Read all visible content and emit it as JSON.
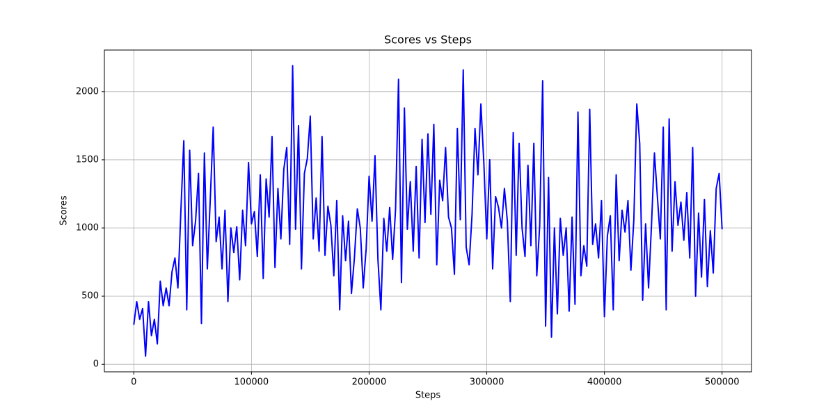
{
  "chart_data": {
    "type": "line",
    "title": "Scores vs Steps",
    "x_label": "Steps",
    "y_label": "Scores",
    "color": "#0000ff",
    "grid": true,
    "xlim": [
      -25000,
      525000
    ],
    "ylim": [
      -55,
      2305
    ],
    "xticks": [
      0,
      100000,
      200000,
      300000,
      400000,
      500000
    ],
    "yticks": [
      0,
      500,
      1000,
      1500,
      2000
    ],
    "x": [
      0,
      2500,
      5000,
      7500,
      10000,
      12500,
      15000,
      17500,
      20000,
      22500,
      25000,
      27500,
      30000,
      32500,
      35000,
      37500,
      40000,
      42500,
      45000,
      47500,
      50000,
      52500,
      55000,
      57500,
      60000,
      62500,
      65000,
      67500,
      70000,
      72500,
      75000,
      77500,
      80000,
      82500,
      85000,
      87500,
      90000,
      92500,
      95000,
      97500,
      100000,
      102500,
      105000,
      107500,
      110000,
      112500,
      115000,
      117500,
      120000,
      122500,
      125000,
      127500,
      130000,
      132500,
      135000,
      137500,
      140000,
      142500,
      145000,
      147500,
      150000,
      152500,
      155000,
      157500,
      160000,
      162500,
      165000,
      167500,
      170000,
      172500,
      175000,
      177500,
      180000,
      182500,
      185000,
      187500,
      190000,
      192500,
      195000,
      197500,
      200000,
      202500,
      205000,
      207500,
      210000,
      212500,
      215000,
      217500,
      220000,
      222500,
      225000,
      227500,
      230000,
      232500,
      235000,
      237500,
      240000,
      242500,
      245000,
      247500,
      250000,
      252500,
      255000,
      257500,
      260000,
      262500,
      265000,
      267500,
      270000,
      272500,
      275000,
      277500,
      280000,
      282500,
      285000,
      287500,
      290000,
      292500,
      295000,
      297500,
      300000,
      302500,
      305000,
      307500,
      310000,
      312500,
      315000,
      317500,
      320000,
      322500,
      325000,
      327500,
      330000,
      332500,
      335000,
      337500,
      340000,
      342500,
      345000,
      347500,
      350000,
      352500,
      355000,
      357500,
      360000,
      362500,
      365000,
      367500,
      370000,
      372500,
      375000,
      377500,
      380000,
      382500,
      385000,
      387500,
      390000,
      392500,
      395000,
      397500,
      400000,
      402500,
      405000,
      407500,
      410000,
      412500,
      415000,
      417500,
      420000,
      422500,
      425000,
      427500,
      430000,
      432500,
      435000,
      437500,
      440000,
      442500,
      445000,
      447500,
      450000,
      452500,
      455000,
      457500,
      460000,
      462500,
      465000,
      467500,
      470000,
      472500,
      475000,
      477500,
      480000,
      482500,
      485000,
      487500,
      490000,
      492500,
      495000,
      497500,
      500000
    ],
    "values": [
      290,
      460,
      330,
      410,
      60,
      460,
      210,
      330,
      150,
      610,
      430,
      560,
      430,
      680,
      780,
      560,
      1120,
      1640,
      400,
      1570,
      870,
      1050,
      1400,
      300,
      1550,
      700,
      1210,
      1740,
      900,
      1080,
      700,
      1130,
      460,
      1000,
      820,
      1010,
      620,
      1130,
      870,
      1480,
      1030,
      1120,
      790,
      1390,
      630,
      1360,
      1080,
      1670,
      710,
      1290,
      920,
      1430,
      1590,
      880,
      2190,
      990,
      1750,
      700,
      1400,
      1510,
      1820,
      920,
      1220,
      830,
      1670,
      800,
      1160,
      1020,
      650,
      1200,
      400,
      1090,
      760,
      1050,
      520,
      780,
      1140,
      1000,
      560,
      850,
      1380,
      1050,
      1530,
      770,
      400,
      1070,
      830,
      1150,
      770,
      1140,
      2090,
      600,
      1880,
      990,
      1340,
      830,
      1450,
      780,
      1650,
      1040,
      1690,
      1100,
      1760,
      730,
      1350,
      1200,
      1590,
      1080,
      1000,
      660,
      1730,
      1060,
      2160,
      860,
      730,
      1100,
      1730,
      1390,
      1910,
      1480,
      920,
      1500,
      700,
      1230,
      1150,
      1000,
      1290,
      1050,
      460,
      1700,
      800,
      1620,
      1000,
      790,
      1460,
      870,
      1620,
      650,
      1020,
      2080,
      280,
      1370,
      200,
      1000,
      370,
      1070,
      800,
      1000,
      390,
      1080,
      440,
      1850,
      650,
      870,
      720,
      1870,
      880,
      1030,
      780,
      1200,
      350,
      940,
      1090,
      400,
      1390,
      760,
      1130,
      970,
      1200,
      690,
      1060,
      1910,
      1620,
      470,
      1030,
      560,
      1020,
      1550,
      1230,
      920,
      1740,
      400,
      1800,
      830,
      1340,
      1020,
      1190,
      910,
      1260,
      780,
      1590,
      500,
      1110,
      640,
      1210,
      570,
      980,
      670,
      1290,
      1400,
      990
    ]
  }
}
